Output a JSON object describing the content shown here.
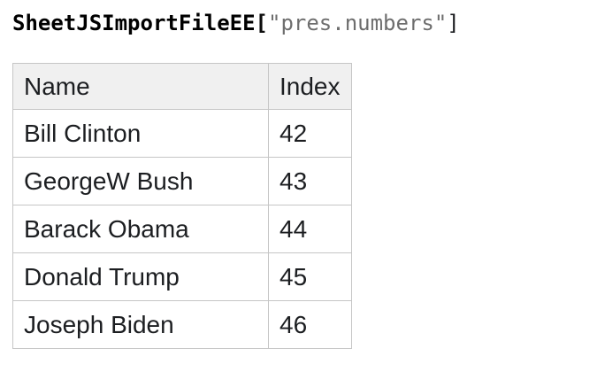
{
  "code_heading": {
    "variable": "SheetJSImportFileEE",
    "open_bracket": "[",
    "string_literal": "\"pres.numbers\"",
    "close_bracket": "]"
  },
  "table": {
    "headers": [
      "Name",
      "Index"
    ],
    "rows": [
      {
        "name": "Bill Clinton",
        "index": 42
      },
      {
        "name": "GeorgeW Bush",
        "index": 43
      },
      {
        "name": "Barack Obama",
        "index": 44
      },
      {
        "name": "Donald Trump",
        "index": 45
      },
      {
        "name": "Joseph Biden",
        "index": 46
      }
    ]
  },
  "colors": {
    "heading_text": "#000000",
    "heading_string": "#6e6e6e",
    "table_text": "#1c1e21",
    "table_border": "#c6c6c6",
    "header_background": "#f0f0f0",
    "page_background": "#ffffff"
  }
}
